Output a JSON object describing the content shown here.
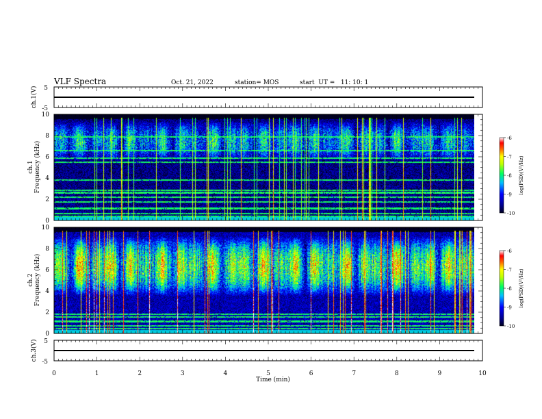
{
  "header": {
    "title": "VLF Spectra",
    "date": "Oct. 21, 2022",
    "station": "station= MOS",
    "start": "start  UT =   11: 10: 1"
  },
  "chart_data": [
    {
      "type": "line",
      "name": "ch1-waveform",
      "ylabel": "ch.1(V)",
      "xlim": [
        0,
        10
      ],
      "ylim": [
        -5,
        5
      ],
      "yticks": [
        "5",
        "-5"
      ],
      "series": [
        {
          "x": [
            0,
            9.83
          ],
          "y": [
            0,
            0
          ]
        }
      ]
    },
    {
      "type": "heatmap",
      "name": "ch1-spectrogram",
      "ylabel_channel": "ch.1",
      "ylabel": "Frequency (kHz)",
      "xlim": [
        0,
        10
      ],
      "ylim": [
        0,
        10
      ],
      "data_end_min": 9.83,
      "yticks": [
        "0",
        "2",
        "4",
        "6",
        "8",
        "10"
      ],
      "colorbar": {
        "label": "log(PSD)(V²/Hz)",
        "range": [
          -10,
          -6
        ],
        "ticks": [
          "-6",
          "-7",
          "-8",
          "-9",
          "-10"
        ]
      },
      "broadband_band_khz": [
        5.6,
        9.4
      ],
      "level_broadband": -8.2,
      "level_background": -9.6,
      "narrowband_lines_khz": [
        0.35,
        0.6,
        1.1,
        1.7,
        2.2,
        2.6,
        2.8,
        3.8,
        5.5,
        5.9,
        6.6,
        7.9
      ]
    },
    {
      "type": "heatmap",
      "name": "ch2-spectrogram",
      "ylabel_channel": "ch.2",
      "ylabel": "Frequency (kHz)",
      "xlim": [
        0,
        10
      ],
      "ylim": [
        0,
        10
      ],
      "data_end_min": 9.83,
      "yticks": [
        "0",
        "2",
        "4",
        "6",
        "8",
        "10"
      ],
      "colorbar": {
        "label": "log(PSD)(V²/Hz)",
        "range": [
          -10,
          -6
        ],
        "ticks": [
          "-6",
          "-7",
          "-8",
          "-9",
          "-10"
        ]
      },
      "broadband_band_khz": [
        3.5,
        9.2
      ],
      "level_broadband": -7.4,
      "level_background": -9.4,
      "narrowband_lines_khz": [
        0.4,
        0.7,
        1.1,
        1.5,
        1.8
      ]
    },
    {
      "type": "line",
      "name": "ch3-waveform",
      "ylabel": "ch.3(V)",
      "xlim": [
        0,
        10
      ],
      "ylim": [
        -5,
        5
      ],
      "yticks": [
        "5",
        "-5"
      ],
      "series": [
        {
          "x": [
            0,
            9.83
          ],
          "y": [
            0,
            0
          ]
        }
      ]
    }
  ],
  "xaxis": {
    "label": "Time (min)",
    "ticks": [
      "0",
      "1",
      "2",
      "3",
      "4",
      "5",
      "6",
      "7",
      "8",
      "9",
      "10"
    ]
  },
  "colors": {
    "frame": "#000000",
    "background": "#ffffff",
    "colormap": [
      "#000000",
      "#00008b",
      "#0000ff",
      "#00bfff",
      "#00ff80",
      "#ffff00",
      "#ff8000",
      "#ff0000",
      "#ffffff"
    ]
  }
}
